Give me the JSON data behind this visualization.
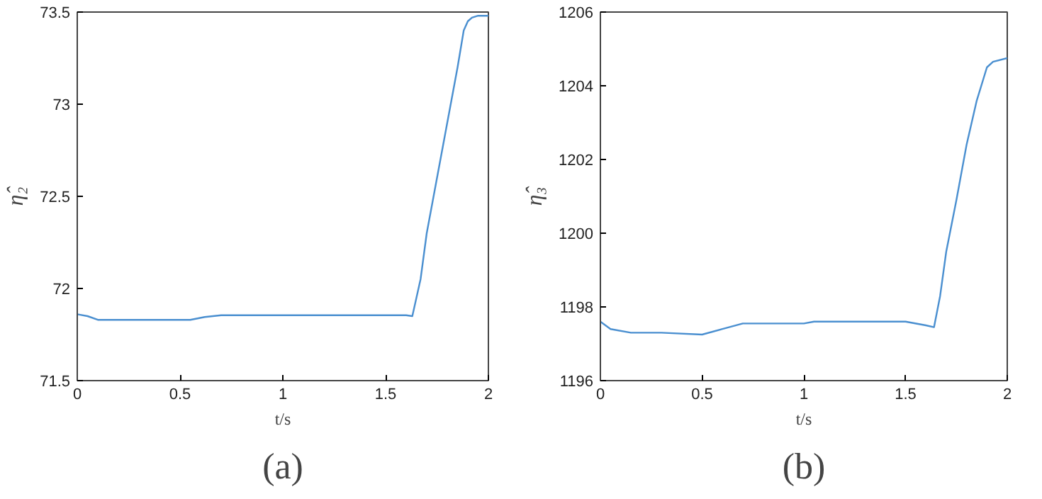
{
  "chart_data": [
    {
      "type": "line",
      "xlabel": "t/s",
      "ylabel": "η̂₂",
      "annotations": [
        "(a)"
      ],
      "xlim": [
        0,
        2
      ],
      "ylim": [
        71.5,
        73.5
      ],
      "xticks": [
        0,
        0.5,
        1,
        1.5,
        2
      ],
      "yticks": [
        71.5,
        72,
        72.5,
        73,
        73.5
      ],
      "grid": false,
      "x": [
        0,
        0.05,
        0.1,
        0.3,
        0.55,
        0.62,
        0.7,
        1.0,
        1.3,
        1.6,
        1.63,
        1.67,
        1.7,
        1.75,
        1.8,
        1.85,
        1.88,
        1.9,
        1.92,
        1.95,
        2.0
      ],
      "series": [
        {
          "color": "#4a8fd0",
          "values": [
            71.86,
            71.85,
            71.83,
            71.83,
            71.83,
            71.845,
            71.855,
            71.855,
            71.855,
            71.855,
            71.85,
            72.05,
            72.3,
            72.6,
            72.9,
            73.2,
            73.4,
            73.45,
            73.47,
            73.48,
            73.48
          ]
        }
      ]
    },
    {
      "type": "line",
      "xlabel": "t/s",
      "ylabel": "η̂₃",
      "annotations": [
        "(b)"
      ],
      "xlim": [
        0,
        2
      ],
      "ylim": [
        1196,
        1206
      ],
      "xticks": [
        0,
        0.5,
        1,
        1.5,
        2
      ],
      "yticks": [
        1196,
        1198,
        1200,
        1202,
        1204,
        1206
      ],
      "grid": false,
      "x": [
        0,
        0.05,
        0.15,
        0.3,
        0.5,
        0.6,
        0.7,
        1.0,
        1.05,
        1.3,
        1.5,
        1.6,
        1.64,
        1.67,
        1.7,
        1.75,
        1.8,
        1.85,
        1.9,
        1.93,
        2.0
      ],
      "series": [
        {
          "color": "#4a8fd0",
          "values": [
            1197.6,
            1197.4,
            1197.3,
            1197.3,
            1197.25,
            1197.4,
            1197.55,
            1197.55,
            1197.6,
            1197.6,
            1197.6,
            1197.5,
            1197.45,
            1198.3,
            1199.5,
            1200.9,
            1202.4,
            1203.6,
            1204.5,
            1204.65,
            1204.75
          ]
        }
      ]
    }
  ]
}
